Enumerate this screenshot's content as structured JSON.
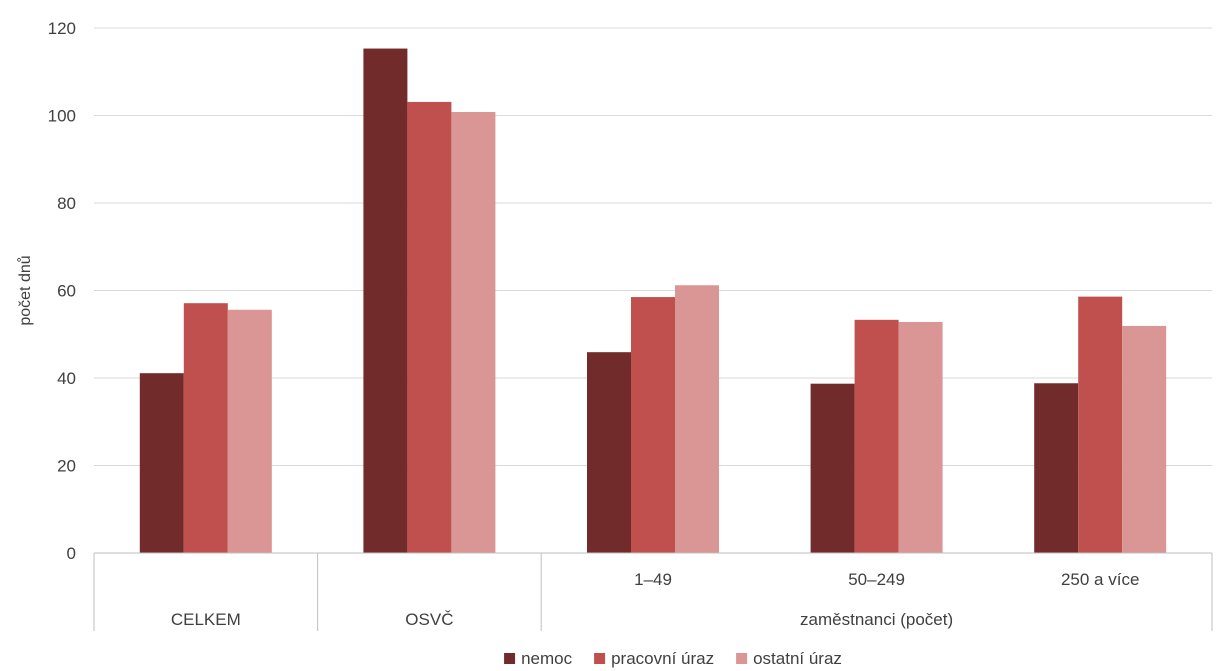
{
  "chart_data": {
    "type": "bar",
    "categories": [
      "CELKEM",
      "OSVČ",
      "1–49",
      "50–249",
      "250 a více"
    ],
    "group_label": "zaměstnanci (počet)",
    "group_members": [
      "1–49",
      "50–249",
      "250 a více"
    ],
    "series": [
      {
        "name": "nemoc",
        "values": [
          41.1,
          115.3,
          45.9,
          38.7,
          38.8
        ],
        "color": "#722b2b"
      },
      {
        "name": "pracovní úraz",
        "values": [
          57.1,
          103.1,
          58.5,
          53.3,
          58.6
        ],
        "color": "#c0504d"
      },
      {
        "name": "ostatní úraz",
        "values": [
          55.6,
          100.8,
          61.2,
          52.8,
          51.9
        ],
        "color": "#da9694"
      }
    ],
    "ylabel": "počet dnů",
    "ylim": [
      0,
      120
    ],
    "yticks": [
      0,
      20,
      40,
      60,
      80,
      100,
      120
    ],
    "grid": true,
    "legend": "bottom"
  }
}
